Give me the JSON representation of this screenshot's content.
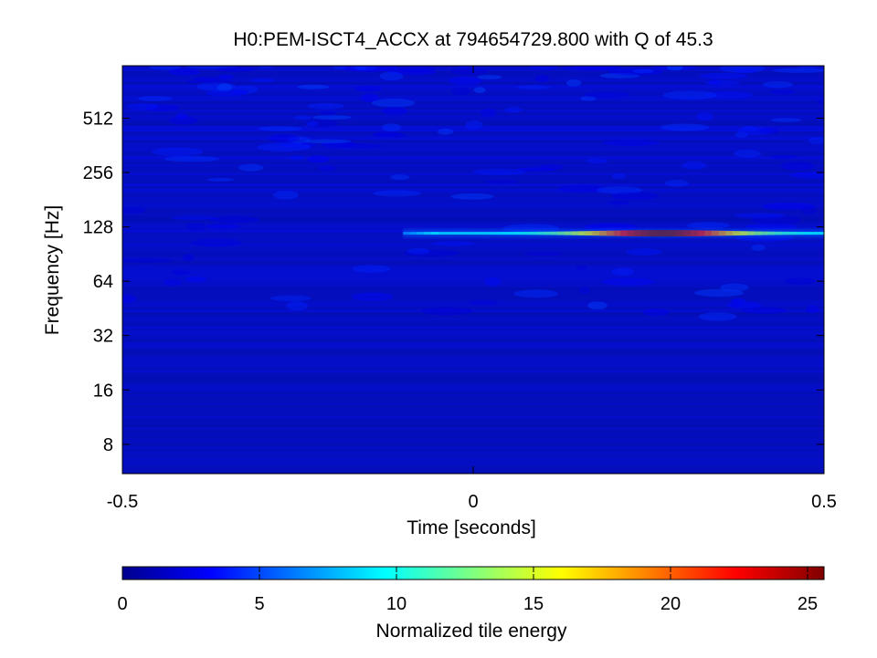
{
  "chart_data": {
    "type": "heatmap",
    "title": "H0:PEM-ISCT4_ACCX at 794654729.800 with Q of 45.3",
    "xlabel": "Time [seconds]",
    "ylabel": "Frequency [Hz]",
    "x_range": [
      -0.5,
      0.5
    ],
    "x_ticks": [
      -0.5,
      0,
      0.5
    ],
    "x_tick_labels": [
      "-0.5",
      "0",
      "0.5"
    ],
    "y_scale": "log2",
    "y_range": [
      5.5,
      1000
    ],
    "y_ticks": [
      8,
      16,
      32,
      64,
      128,
      256,
      512
    ],
    "y_tick_labels": [
      "8",
      "16",
      "32",
      "64",
      "128",
      "256",
      "512"
    ],
    "colormap": "jet",
    "colorbar": {
      "label": "Normalized tile energy",
      "range": [
        0,
        25.6
      ],
      "ticks": [
        0,
        5,
        10,
        15,
        20,
        25
      ],
      "tick_labels": [
        "0",
        "5",
        "10",
        "15",
        "20",
        "25"
      ],
      "placement": "bottom"
    },
    "features": [
      {
        "description": "narrowband line",
        "frequency_hz": 118,
        "t_start": -0.1,
        "t_end": 0.5,
        "peak_time": 0.27,
        "peak_energy": 25.6
      }
    ],
    "background_energy_range": [
      0,
      5
    ]
  }
}
